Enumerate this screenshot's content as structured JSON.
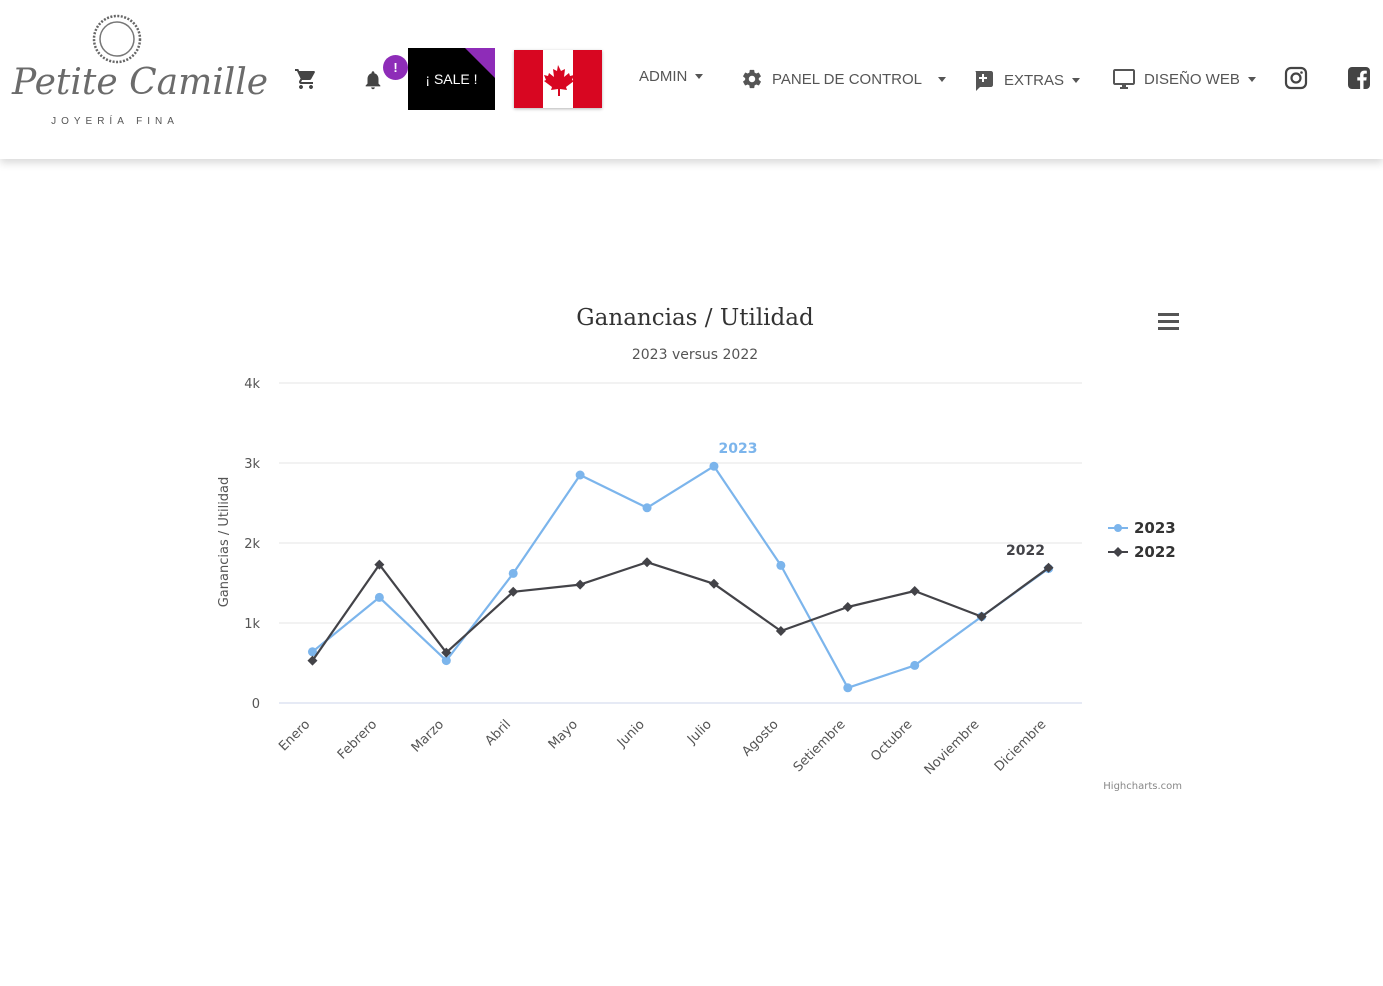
{
  "brand": {
    "name": "Petite Camille",
    "tagline": "JOYERÍA FINA"
  },
  "nav": {
    "badge": "!",
    "sale_label": "¡ SALE !",
    "flag": "canada-flag",
    "menu": [
      {
        "label": "ADMIN",
        "icon": ""
      },
      {
        "label": "PANEL DE CONTROL",
        "icon": "gear-icon"
      },
      {
        "label": "EXTRAS",
        "icon": "add-box-icon"
      },
      {
        "label": "DISEÑO WEB",
        "icon": "monitor-icon"
      }
    ],
    "social": [
      "instagram-icon",
      "facebook-icon"
    ],
    "colors": {
      "accent": "#8e2cb8",
      "flag_red": "#d80621"
    }
  },
  "chart_data": {
    "type": "line",
    "title": "Ganancias / Utilidad",
    "subtitle": "2023 versus 2022",
    "ylabel": "Ganancias / Utilidad",
    "xlabel": "",
    "ylim": [
      0,
      4000
    ],
    "yticks": [
      0,
      1000,
      2000,
      3000,
      4000
    ],
    "ytick_labels": [
      "0",
      "1k",
      "2k",
      "3k",
      "4k"
    ],
    "categories": [
      "Enero",
      "Febrero",
      "Marzo",
      "Abril",
      "Mayo",
      "Junio",
      "Julio",
      "Agosto",
      "Setiembre",
      "Octubre",
      "Noviembre",
      "Diciembre"
    ],
    "series": [
      {
        "name": "2023",
        "color": "#7cb5ec",
        "marker": "circle",
        "values": [
          640,
          1320,
          530,
          1620,
          2850,
          2440,
          2960,
          1720,
          190,
          470,
          1080,
          1680
        ]
      },
      {
        "name": "2022",
        "color": "#434348",
        "marker": "diamond",
        "values": [
          530,
          1730,
          630,
          1390,
          1480,
          1760,
          1490,
          900,
          1200,
          1400,
          1080,
          1690
        ]
      }
    ],
    "series_labels": [
      "2023",
      "2022"
    ],
    "legend_placement": "right",
    "grid": true,
    "credits": "Highcharts.com",
    "menu_icon": "hamburger-icon"
  }
}
